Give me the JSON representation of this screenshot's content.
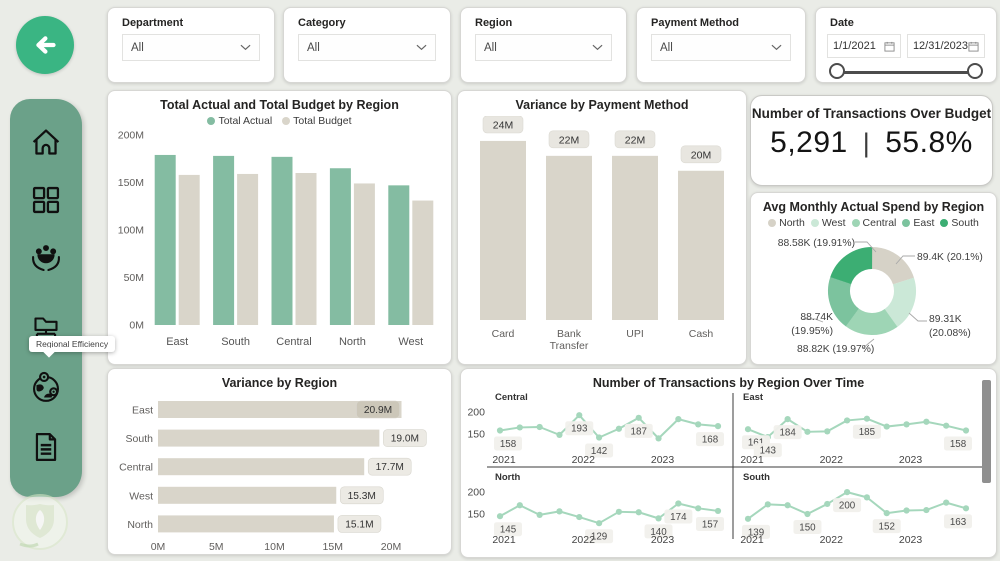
{
  "nav": {
    "back_color": "#3ab583",
    "back_icon": "arrow-left-icon"
  },
  "sidebar": {
    "color": "#6ba189",
    "tooltip": "Regional Efficiency",
    "items": [
      {
        "icon": "home-icon"
      },
      {
        "icon": "apps-grid-icon"
      },
      {
        "icon": "community-care-icon"
      },
      {
        "icon": "folder-structure-icon"
      },
      {
        "icon": "globe-location-icon"
      },
      {
        "icon": "report-document-icon"
      }
    ]
  },
  "filters": [
    {
      "label": "Department",
      "value": "All"
    },
    {
      "label": "Category",
      "value": "All"
    },
    {
      "label": "Region",
      "value": "All"
    },
    {
      "label": "Payment Method",
      "value": "All"
    }
  ],
  "date_slicer": {
    "label": "Date",
    "start": "1/1/2021",
    "end": "12/31/2023"
  },
  "kpi": {
    "title": "Number of Transactions Over Budget",
    "value": "5,291",
    "separator": "|",
    "percent": "55.8%"
  },
  "chart_data": [
    {
      "id": "total_actual_budget_by_region",
      "type": "bar",
      "title": "Total Actual and Total Budget by Region",
      "categories": [
        "East",
        "South",
        "Central",
        "North",
        "West"
      ],
      "series": [
        {
          "name": "Total Actual",
          "color": "#84bca2",
          "values": [
            179,
            178,
            177,
            165,
            147
          ]
        },
        {
          "name": "Total Budget",
          "color": "#d9d5ca",
          "values": [
            158,
            159,
            160,
            149,
            131
          ]
        }
      ],
      "ylim": [
        0,
        200
      ],
      "yticks": [
        0,
        50,
        100,
        150,
        200
      ],
      "ytick_labels": [
        "0M",
        "50M",
        "100M",
        "150M",
        "200M"
      ],
      "legend_position": "top"
    },
    {
      "id": "variance_by_payment_method",
      "type": "bar",
      "title": "Variance by Payment Method",
      "categories": [
        "Card",
        "Bank Transfer",
        "UPI",
        "Cash"
      ],
      "values": [
        24,
        22,
        22,
        20
      ],
      "data_labels": [
        "24M",
        "22M",
        "22M",
        "20M"
      ],
      "bar_color": "#d9d5ca",
      "ylim": [
        0,
        26
      ]
    },
    {
      "id": "avg_monthly_actual_spend_by_region",
      "type": "pie",
      "donut": true,
      "title": "Avg Monthly Actual Spend by Region",
      "slices": [
        {
          "name": "North",
          "color": "#d6d2c7",
          "pct": 20.1,
          "label": "89.4K (20.1%)"
        },
        {
          "name": "West",
          "color": "#cbe8d7",
          "pct": 20.08,
          "label": "89.31K (20.08%)"
        },
        {
          "name": "Central",
          "color": "#9ed5b5",
          "pct": 19.97,
          "label": "88.82K (19.97%)"
        },
        {
          "name": "East",
          "color": "#7cc39e",
          "pct": 19.95,
          "label": "88.74K (19.95%)"
        },
        {
          "name": "South",
          "color": "#3cae73",
          "pct": 19.91,
          "label": "88.58K (19.91%)"
        }
      ]
    },
    {
      "id": "variance_by_region",
      "type": "bar",
      "orientation": "horizontal",
      "title": "Variance by Region",
      "categories": [
        "East",
        "South",
        "Central",
        "West",
        "North"
      ],
      "values": [
        20.9,
        19.0,
        17.7,
        15.3,
        15.1
      ],
      "data_labels": [
        "20.9M",
        "19.0M",
        "17.7M",
        "15.3M",
        "15.1M"
      ],
      "bar_color": "#d9d5ca",
      "xlim": [
        0,
        21.8
      ],
      "xticks": [
        0,
        5,
        10,
        15,
        20
      ],
      "xtick_labels": [
        "0M",
        "5M",
        "10M",
        "15M",
        "20M"
      ]
    },
    {
      "id": "transactions_by_region_over_time",
      "type": "line",
      "title": "Number of Transactions by Region Over Time",
      "line_color": "#a5d7bc",
      "ylim": [
        118,
        214
      ],
      "yticks": [
        200,
        150
      ],
      "ytick_labels": [
        "200",
        "150"
      ],
      "x_tick_labels": [
        "2021",
        "2022",
        "2023"
      ],
      "panels": [
        {
          "name": "Central",
          "values": [
            158,
            165,
            166,
            148,
            193,
            142,
            162,
            187,
            140,
            184,
            172,
            168
          ],
          "point_labels": [
            [
              0,
              "158"
            ],
            [
              4,
              "193"
            ],
            [
              5,
              "142"
            ],
            [
              7,
              "187"
            ],
            [
              11,
              "168"
            ]
          ]
        },
        {
          "name": "East",
          "values": [
            161,
            143,
            184,
            155,
            156,
            181,
            185,
            167,
            172,
            178,
            169,
            158
          ],
          "point_labels": [
            [
              0,
              "161"
            ],
            [
              1,
              "143"
            ],
            [
              2,
              "184"
            ],
            [
              6,
              "185"
            ],
            [
              11,
              "158"
            ]
          ]
        },
        {
          "name": "North",
          "values": [
            145,
            170,
            148,
            156,
            143,
            129,
            155,
            154,
            140,
            174,
            163,
            157
          ],
          "point_labels": [
            [
              0,
              "145"
            ],
            [
              5,
              "129"
            ],
            [
              8,
              "140"
            ],
            [
              9,
              "174"
            ],
            [
              11,
              "157"
            ]
          ]
        },
        {
          "name": "South",
          "values": [
            139,
            172,
            170,
            150,
            173,
            200,
            188,
            152,
            158,
            159,
            176,
            163
          ],
          "point_labels": [
            [
              0,
              "139"
            ],
            [
              3,
              "150"
            ],
            [
              5,
              "200"
            ],
            [
              7,
              "152"
            ],
            [
              11,
              "163"
            ]
          ]
        }
      ]
    }
  ]
}
